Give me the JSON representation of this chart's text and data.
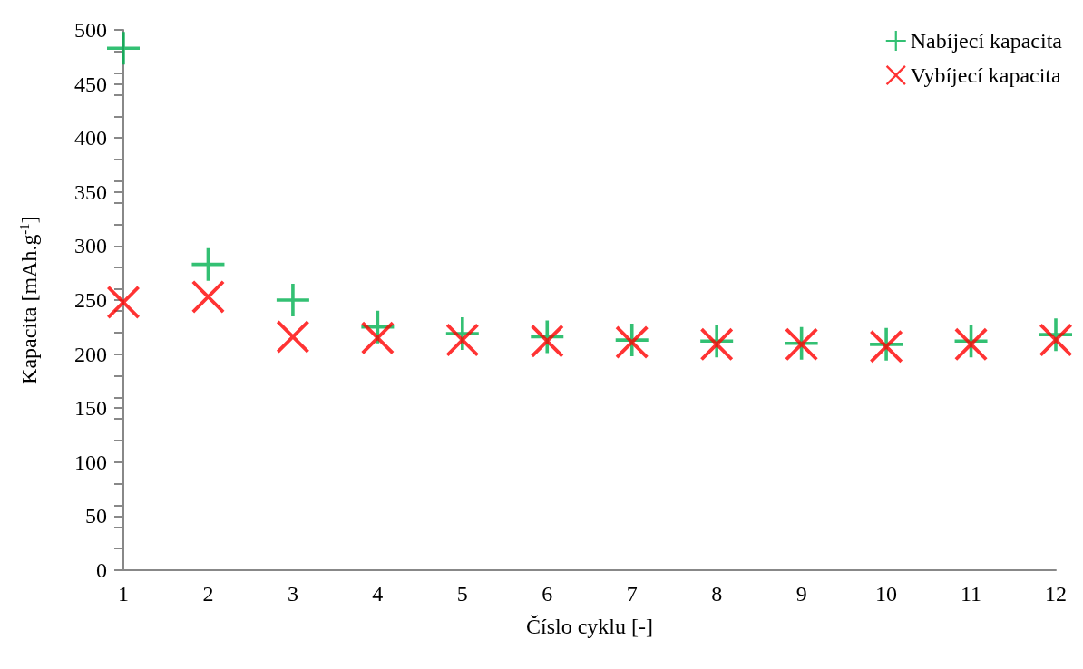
{
  "chart_data": {
    "type": "scatter",
    "xlabel": "Číslo cyklu [-]",
    "ylabel": "Kapacita [mAh.g$^{-1}$]",
    "x": [
      1,
      2,
      3,
      4,
      5,
      6,
      7,
      8,
      9,
      10,
      11,
      12
    ],
    "xlim": [
      1,
      12
    ],
    "xticks": [
      1,
      2,
      3,
      4,
      5,
      6,
      7,
      8,
      9,
      10,
      11,
      12
    ],
    "ylim": [
      0,
      500
    ],
    "yticks": [
      0,
      50,
      100,
      150,
      200,
      250,
      300,
      350,
      400,
      450,
      500
    ],
    "grid": false,
    "legend": "top right",
    "series": [
      {
        "name": "Nabíjecí kapacita",
        "color": "#00b050",
        "marker": "plus",
        "values": [
          483,
          283,
          250,
          225,
          219,
          216,
          213,
          212,
          210,
          209,
          212,
          218
        ]
      },
      {
        "name": "Vybíjecí kapacita",
        "color": "#ff0000",
        "marker": "cross",
        "values": [
          248,
          253,
          216,
          215,
          213,
          212,
          211,
          209,
          209,
          207,
          209,
          213
        ]
      }
    ]
  }
}
